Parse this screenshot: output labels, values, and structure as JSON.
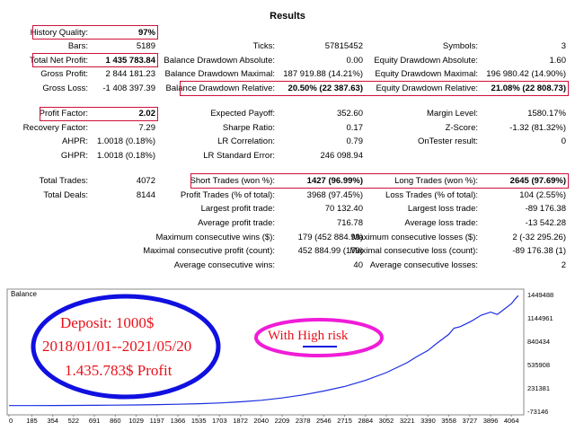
{
  "title": "Results",
  "col1": [
    {
      "label": "History Quality:",
      "value": "97%"
    },
    {
      "label": "Bars:",
      "value": "5189"
    },
    {
      "label": "Total Net Profit:",
      "value": "1 435 783.84"
    },
    {
      "label": "Gross Profit:",
      "value": "2 844 181.23"
    },
    {
      "label": "Gross Loss:",
      "value": "-1 408 397.39"
    },
    {
      "label": "Profit Factor:",
      "value": "2.02"
    },
    {
      "label": "Recovery Factor:",
      "value": "7.29"
    },
    {
      "label": "AHPR:",
      "value": "1.0018 (0.18%)"
    },
    {
      "label": "GHPR:",
      "value": "1.0018 (0.18%)"
    },
    {
      "label": "Total Trades:",
      "value": "4072"
    },
    {
      "label": "Total Deals:",
      "value": "8144"
    }
  ],
  "col2": [
    {
      "label": "Ticks:",
      "value": "57815452"
    },
    {
      "label": "Balance Drawdown Absolute:",
      "value": "0.00"
    },
    {
      "label": "Balance Drawdown Maximal:",
      "value": "187 919.88 (14.21%)"
    },
    {
      "label": "Balance Drawdown Relative:",
      "value": "20.50% (22 387.63)"
    },
    {
      "label": "Expected Payoff:",
      "value": "352.60"
    },
    {
      "label": "Sharpe Ratio:",
      "value": "0.17"
    },
    {
      "label": "LR Correlation:",
      "value": "0.79"
    },
    {
      "label": "LR Standard Error:",
      "value": "246 098.94"
    },
    {
      "label": "Short Trades (won %):",
      "value": "1427 (96.99%)"
    },
    {
      "label": "Profit Trades (% of total):",
      "value": "3968 (97.45%)"
    },
    {
      "label": "Largest profit trade:",
      "value": "70 132.40"
    },
    {
      "label": "Average profit trade:",
      "value": "716.78"
    },
    {
      "label": "Maximum consecutive wins ($):",
      "value": "179 (452 884.99)"
    },
    {
      "label": "Maximal consecutive profit (count):",
      "value": "452 884.99 (179)"
    },
    {
      "label": "Average consecutive wins:",
      "value": "40"
    }
  ],
  "col3": [
    {
      "label": "Symbols:",
      "value": "3"
    },
    {
      "label": "Equity Drawdown Absolute:",
      "value": "1.60"
    },
    {
      "label": "Equity Drawdown Maximal:",
      "value": "196 980.42 (14.90%)"
    },
    {
      "label": "Equity Drawdown Relative:",
      "value": "21.08% (22 808.73)"
    },
    {
      "label": "Margin Level:",
      "value": "1580.17%"
    },
    {
      "label": "Z-Score:",
      "value": "-1.32 (81.32%)"
    },
    {
      "label": "OnTester result:",
      "value": "0"
    },
    {
      "label": "Long Trades (won %):",
      "value": "2645 (97.69%)"
    },
    {
      "label": "Loss Trades (% of total):",
      "value": "104 (2.55%)"
    },
    {
      "label": "Largest loss trade:",
      "value": "-89 176.38"
    },
    {
      "label": "Average loss trade:",
      "value": "-13 542.28"
    },
    {
      "label": "Maximum consecutive losses ($):",
      "value": "2 (-32 295.26)"
    },
    {
      "label": "Maximal consecutive loss (count):",
      "value": "-89 176.38 (1)"
    },
    {
      "label": "Average consecutive losses:",
      "value": "2"
    }
  ],
  "annotations": {
    "deposit": "Deposit: 1000$",
    "dates": "2018/01/01--2021/05/20",
    "profit": "1.435.783$ Profit",
    "risk": "With High risk"
  },
  "colors": {
    "highlight_box": "#d0103a",
    "balance_line": "#1a2ee0",
    "blue_ellipse": "#1010e0",
    "magenta_ellipse": "#f01cd8",
    "annotation_text": "#e8101a"
  },
  "chart_data": {
    "type": "line",
    "title": "Balance",
    "xlabel": "",
    "ylabel": "",
    "x_ticks": [
      "0",
      "185",
      "354",
      "522",
      "691",
      "860",
      "1029",
      "1197",
      "1366",
      "1535",
      "1703",
      "1872",
      "2040",
      "2209",
      "2378",
      "2546",
      "2715",
      "2884",
      "3052",
      "3221",
      "3390",
      "3558",
      "3727",
      "3896",
      "4064"
    ],
    "y_ticks": [
      "1449488",
      "1144961",
      "840434",
      "535908",
      "231381",
      "-73146"
    ],
    "xlim": [
      0,
      4150
    ],
    "ylim": [
      -73146,
      1449488
    ],
    "grid": false,
    "series": [
      {
        "name": "",
        "x": [
          0,
          185,
          354,
          522,
          691,
          860,
          1029,
          1197,
          1366,
          1535,
          1703,
          1872,
          2040,
          2209,
          2378,
          2546,
          2715,
          2884,
          3052,
          3221,
          3300,
          3390,
          3450,
          3558,
          3600,
          3650,
          3727,
          3760,
          3820,
          3896,
          3950,
          4000,
          4064,
          4100,
          4120
        ],
        "y": [
          1000,
          1000,
          1500,
          2500,
          4000,
          6000,
          9000,
          13000,
          18000,
          25000,
          35000,
          50000,
          70000,
          100000,
          140000,
          190000,
          250000,
          330000,
          430000,
          560000,
          640000,
          720000,
          800000,
          930000,
          1010000,
          1030000,
          1090000,
          1120000,
          1180000,
          1220000,
          1190000,
          1250000,
          1330000,
          1400000,
          1435784
        ]
      }
    ]
  }
}
